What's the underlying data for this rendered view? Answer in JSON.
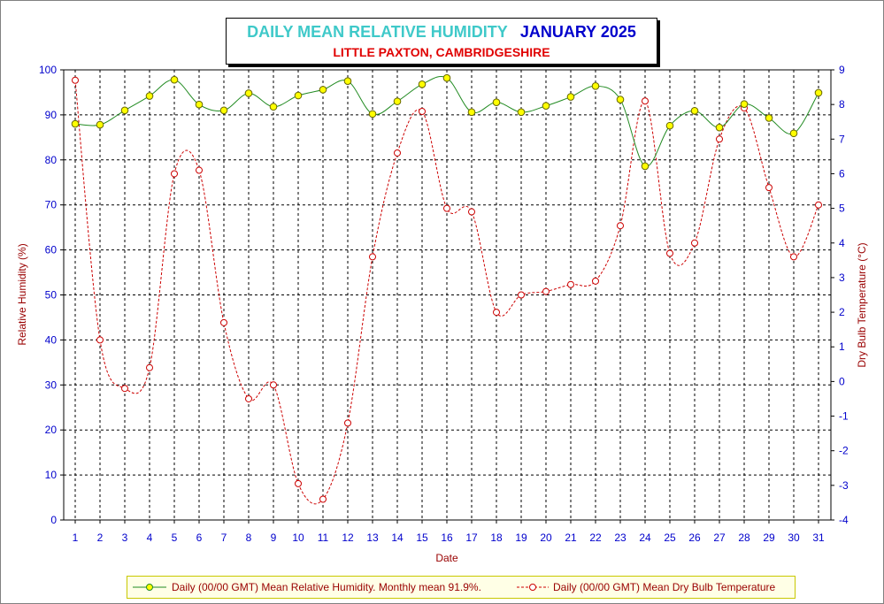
{
  "chart_data": {
    "type": "line",
    "title": "DAILY MEAN RELATIVE HUMIDITY",
    "title_period": "JANUARY 2025",
    "subtitle": "LITTLE PAXTON, CAMBRIDGESHIRE",
    "xlabel": "Date",
    "ylabel_left": "Relative Humidity (%)",
    "ylabel_right": "Dry Bulb Temperature (°C)",
    "x": [
      1,
      2,
      3,
      4,
      5,
      6,
      7,
      8,
      9,
      10,
      11,
      12,
      13,
      14,
      15,
      16,
      17,
      18,
      19,
      20,
      21,
      22,
      23,
      24,
      25,
      26,
      27,
      28,
      29,
      30,
      31
    ],
    "ylim_left": [
      0,
      100
    ],
    "ylim_right": [
      -4,
      9
    ],
    "left_ticks": [
      0,
      10,
      20,
      30,
      40,
      50,
      60,
      70,
      80,
      90,
      100
    ],
    "right_ticks": [
      -4,
      -3,
      -2,
      -1,
      0,
      1,
      2,
      3,
      4,
      5,
      6,
      7,
      8,
      9
    ],
    "grid": true,
    "legend_position": "bottom",
    "series": [
      {
        "name": "Daily (00/00 GMT) Mean Relative Humidity. Monthly mean 91.9%.",
        "axis": "left",
        "color": "#228b22",
        "marker_fill": "#ffff00",
        "line_style": "solid",
        "values": [
          88.0,
          87.8,
          91.0,
          94.2,
          97.8,
          92.3,
          91.0,
          94.8,
          91.8,
          94.3,
          95.6,
          97.5,
          90.2,
          93.0,
          96.8,
          98.2,
          90.6,
          92.8,
          90.6,
          92.0,
          94.0,
          96.4,
          93.4,
          78.6,
          87.6,
          90.9,
          87.2,
          92.4,
          89.3,
          85.9,
          94.9
        ]
      },
      {
        "name": "Daily (00/00 GMT) Mean Dry Bulb Temperature",
        "axis": "right",
        "color": "#cc0000",
        "marker_fill": "#ffffff",
        "line_style": "dashed",
        "values": [
          8.7,
          1.2,
          -0.2,
          0.4,
          6.0,
          6.1,
          1.7,
          -0.5,
          -0.1,
          -2.95,
          -3.4,
          -1.2,
          3.6,
          6.6,
          7.8,
          5.0,
          4.9,
          2.0,
          2.5,
          2.6,
          2.8,
          2.9,
          4.5,
          8.1,
          3.7,
          4.0,
          7.0,
          7.9,
          5.6,
          3.6,
          5.1
        ]
      }
    ]
  }
}
